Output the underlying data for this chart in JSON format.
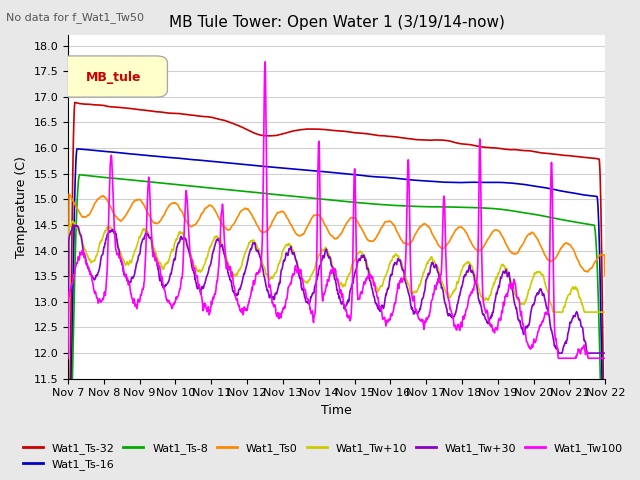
{
  "title": "MB Tule Tower: Open Water 1 (3/19/14-now)",
  "subtitle": "No data for f_Wat1_Tw50",
  "ylabel": "Temperature (C)",
  "xlabel": "Time",
  "ylim": [
    11.5,
    18.2
  ],
  "yticks": [
    11.5,
    12.0,
    12.5,
    13.0,
    13.5,
    14.0,
    14.5,
    15.0,
    15.5,
    16.0,
    16.5,
    17.0,
    17.5,
    18.0
  ],
  "x_tick_labels": [
    "Nov 7",
    "Nov 8",
    "Nov 9",
    "Nov 10",
    "Nov 11",
    "Nov 12",
    "Nov 13",
    "Nov 14",
    "Nov 15",
    "Nov 16",
    "Nov 17",
    "Nov 18",
    "Nov 19",
    "Nov 20",
    "Nov 21",
    "Nov 22"
  ],
  "legend_label": "MB_tule",
  "legend_box_color": "#ffffcc",
  "legend_text_color": "#cc0000",
  "background_color": "#e8e8e8",
  "plot_bg_color": "#ffffff",
  "grid_color": "#d0d0d0",
  "series": {
    "Wat1_Ts-32": {
      "color": "#cc0000",
      "linewidth": 1.2
    },
    "Wat1_Ts-16": {
      "color": "#0000cc",
      "linewidth": 1.2
    },
    "Wat1_Ts-8": {
      "color": "#00aa00",
      "linewidth": 1.2
    },
    "Wat1_Ts0": {
      "color": "#ff8800",
      "linewidth": 1.2
    },
    "Wat1_Tw+10": {
      "color": "#cccc00",
      "linewidth": 1.2
    },
    "Wat1_Tw+30": {
      "color": "#8800cc",
      "linewidth": 1.2
    },
    "Wat1_Tw100": {
      "color": "#ff00ff",
      "linewidth": 1.2
    }
  }
}
